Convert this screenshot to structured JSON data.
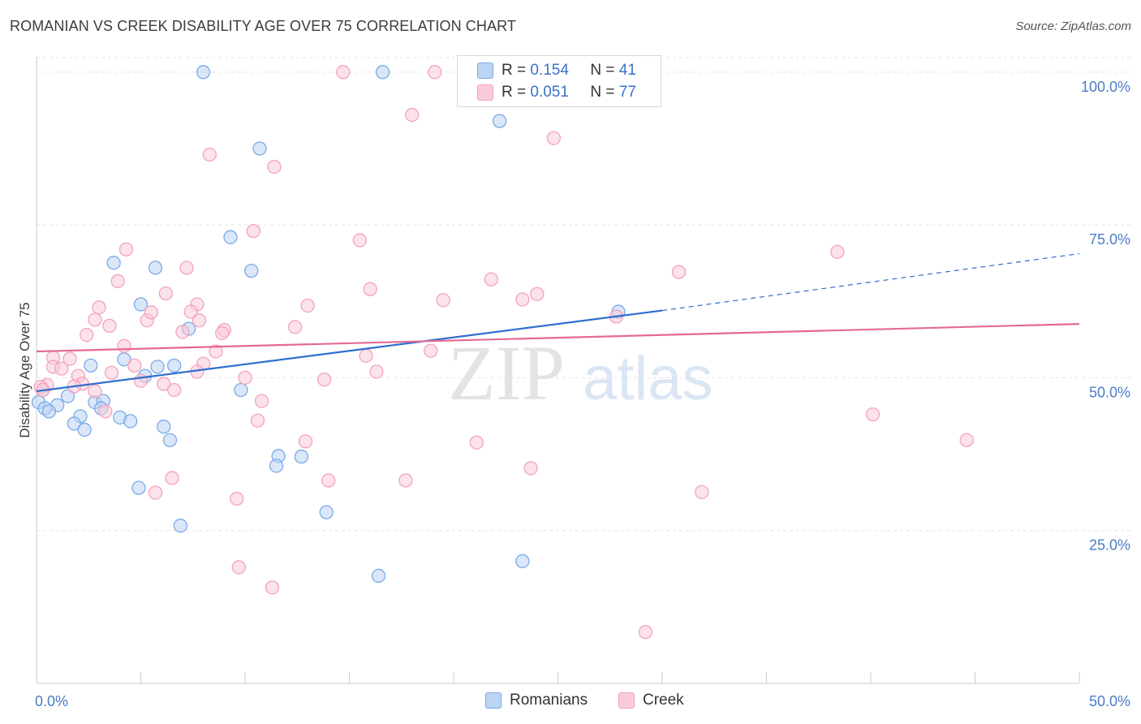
{
  "header": {
    "title": "ROMANIAN VS CREEK DISABILITY AGE OVER 75 CORRELATION CHART",
    "source": "Source: ZipAtlas.com"
  },
  "legend": {
    "rows": [
      {
        "r_label": "R = ",
        "r_value": "0.154",
        "n_label": "N = ",
        "n_value": "41",
        "color": "#7aaae6"
      },
      {
        "r_label": "R = ",
        "r_value": "0.051",
        "n_label": "N = ",
        "n_value": "77",
        "color": "#f3a3bd"
      }
    ]
  },
  "bottom_legend": {
    "romanians": "Romanians",
    "creek": "Creek"
  },
  "watermark": {
    "zip": "ZIP",
    "atlas": "atlas"
  },
  "colors": {
    "romanians_fill": "#bcd4f4",
    "romanians_stroke": "#7aaae6",
    "romanians_line": "#2f6fce",
    "creek_fill": "#f9cbd9",
    "creek_stroke": "#f3a3bd",
    "creek_line": "#e46a95",
    "tick_text": "#4a7cc7"
  },
  "chart_data": {
    "type": "scatter",
    "title": "ROMANIAN VS CREEK DISABILITY AGE OVER 75 CORRELATION CHART",
    "xlabel": "",
    "ylabel": "Disability Age Over 75",
    "xlim": [
      0,
      50
    ],
    "ylim": [
      0,
      102.5
    ],
    "x_tick_labels": [
      "0.0%",
      "50.0%"
    ],
    "y_ticks": [
      25,
      50,
      75,
      100
    ],
    "y_tick_labels": [
      "25.0%",
      "50.0%",
      "75.0%",
      "100.0%"
    ],
    "grid": true,
    "legend_position": "top-center",
    "series": [
      {
        "name": "Romanians",
        "R": 0.154,
        "N": 41,
        "trend": {
          "x0": 0,
          "y0": 47.8,
          "x1": 30,
          "y1": 61.0,
          "dash_to_x": 50,
          "dash_to_y": 70.3
        },
        "points": [
          [
            8.0,
            100
          ],
          [
            16.6,
            100
          ],
          [
            22.2,
            92.0
          ],
          [
            10.7,
            87.5
          ],
          [
            9.3,
            73.0
          ],
          [
            10.3,
            67.5
          ],
          [
            3.7,
            68.8
          ],
          [
            5.7,
            68.0
          ],
          [
            5.0,
            62.0
          ],
          [
            7.3,
            58.0
          ],
          [
            27.9,
            60.8
          ],
          [
            4.2,
            53.0
          ],
          [
            2.6,
            52.0
          ],
          [
            5.8,
            51.8
          ],
          [
            6.6,
            52.0
          ],
          [
            5.2,
            50.3
          ],
          [
            9.8,
            48.0
          ],
          [
            1.5,
            47.0
          ],
          [
            0.3,
            48.0
          ],
          [
            0.1,
            46.0
          ],
          [
            0.4,
            45.0
          ],
          [
            1.0,
            45.5
          ],
          [
            2.8,
            46.0
          ],
          [
            3.2,
            46.2
          ],
          [
            3.1,
            45.0
          ],
          [
            0.6,
            44.5
          ],
          [
            2.1,
            43.7
          ],
          [
            4.0,
            43.5
          ],
          [
            4.5,
            42.9
          ],
          [
            1.8,
            42.5
          ],
          [
            6.1,
            42.0
          ],
          [
            2.3,
            41.5
          ],
          [
            6.4,
            39.8
          ],
          [
            11.6,
            37.2
          ],
          [
            12.7,
            37.1
          ],
          [
            11.5,
            35.6
          ],
          [
            4.9,
            32.0
          ],
          [
            13.9,
            28.0
          ],
          [
            6.9,
            25.8
          ],
          [
            23.3,
            20.0
          ],
          [
            16.4,
            17.6
          ]
        ]
      },
      {
        "name": "Creek",
        "R": 0.051,
        "N": 77,
        "trend": {
          "x0": 0,
          "y0": 54.3,
          "x1": 50,
          "y1": 58.8
        },
        "points": [
          [
            14.7,
            100
          ],
          [
            19.1,
            100
          ],
          [
            23.0,
            100
          ],
          [
            18.0,
            93.0
          ],
          [
            24.8,
            89.2
          ],
          [
            8.3,
            86.5
          ],
          [
            11.4,
            84.5
          ],
          [
            10.4,
            74.0
          ],
          [
            15.5,
            72.5
          ],
          [
            4.3,
            71.0
          ],
          [
            38.4,
            70.6
          ],
          [
            7.2,
            68.0
          ],
          [
            30.8,
            67.3
          ],
          [
            3.9,
            65.8
          ],
          [
            21.8,
            66.1
          ],
          [
            16.0,
            64.5
          ],
          [
            6.2,
            63.8
          ],
          [
            24.0,
            63.7
          ],
          [
            19.5,
            62.7
          ],
          [
            23.3,
            62.8
          ],
          [
            3.0,
            61.5
          ],
          [
            13.0,
            61.8
          ],
          [
            7.7,
            62.0
          ],
          [
            7.4,
            60.8
          ],
          [
            5.3,
            59.4
          ],
          [
            5.5,
            60.7
          ],
          [
            7.8,
            59.4
          ],
          [
            2.8,
            59.5
          ],
          [
            27.8,
            60.0
          ],
          [
            3.5,
            58.5
          ],
          [
            12.4,
            58.3
          ],
          [
            9.0,
            57.8
          ],
          [
            7.0,
            57.5
          ],
          [
            8.9,
            57.3
          ],
          [
            2.4,
            57.0
          ],
          [
            4.2,
            55.2
          ],
          [
            18.9,
            54.4
          ],
          [
            8.6,
            54.3
          ],
          [
            15.8,
            53.6
          ],
          [
            1.6,
            53.1
          ],
          [
            0.8,
            53.3
          ],
          [
            0.8,
            51.8
          ],
          [
            4.7,
            52.0
          ],
          [
            8.0,
            52.3
          ],
          [
            1.2,
            51.5
          ],
          [
            7.7,
            51.0
          ],
          [
            16.3,
            51.0
          ],
          [
            3.6,
            50.8
          ],
          [
            2.0,
            50.3
          ],
          [
            10.0,
            50.0
          ],
          [
            13.8,
            49.7
          ],
          [
            5.0,
            49.5
          ],
          [
            6.1,
            49.0
          ],
          [
            2.2,
            49.0
          ],
          [
            1.8,
            48.6
          ],
          [
            0.5,
            48.8
          ],
          [
            0.2,
            48.5
          ],
          [
            0.3,
            48.0
          ],
          [
            6.6,
            48.0
          ],
          [
            2.8,
            47.8
          ],
          [
            10.8,
            46.2
          ],
          [
            3.3,
            44.5
          ],
          [
            40.1,
            44.0
          ],
          [
            10.6,
            43.0
          ],
          [
            12.9,
            39.6
          ],
          [
            21.1,
            39.4
          ],
          [
            44.6,
            39.8
          ],
          [
            23.7,
            35.2
          ],
          [
            6.5,
            33.6
          ],
          [
            14.0,
            33.2
          ],
          [
            17.7,
            33.2
          ],
          [
            31.9,
            31.3
          ],
          [
            5.7,
            31.2
          ],
          [
            9.6,
            30.2
          ],
          [
            9.7,
            19.0
          ],
          [
            11.3,
            15.7
          ],
          [
            29.2,
            8.4
          ]
        ]
      }
    ]
  }
}
